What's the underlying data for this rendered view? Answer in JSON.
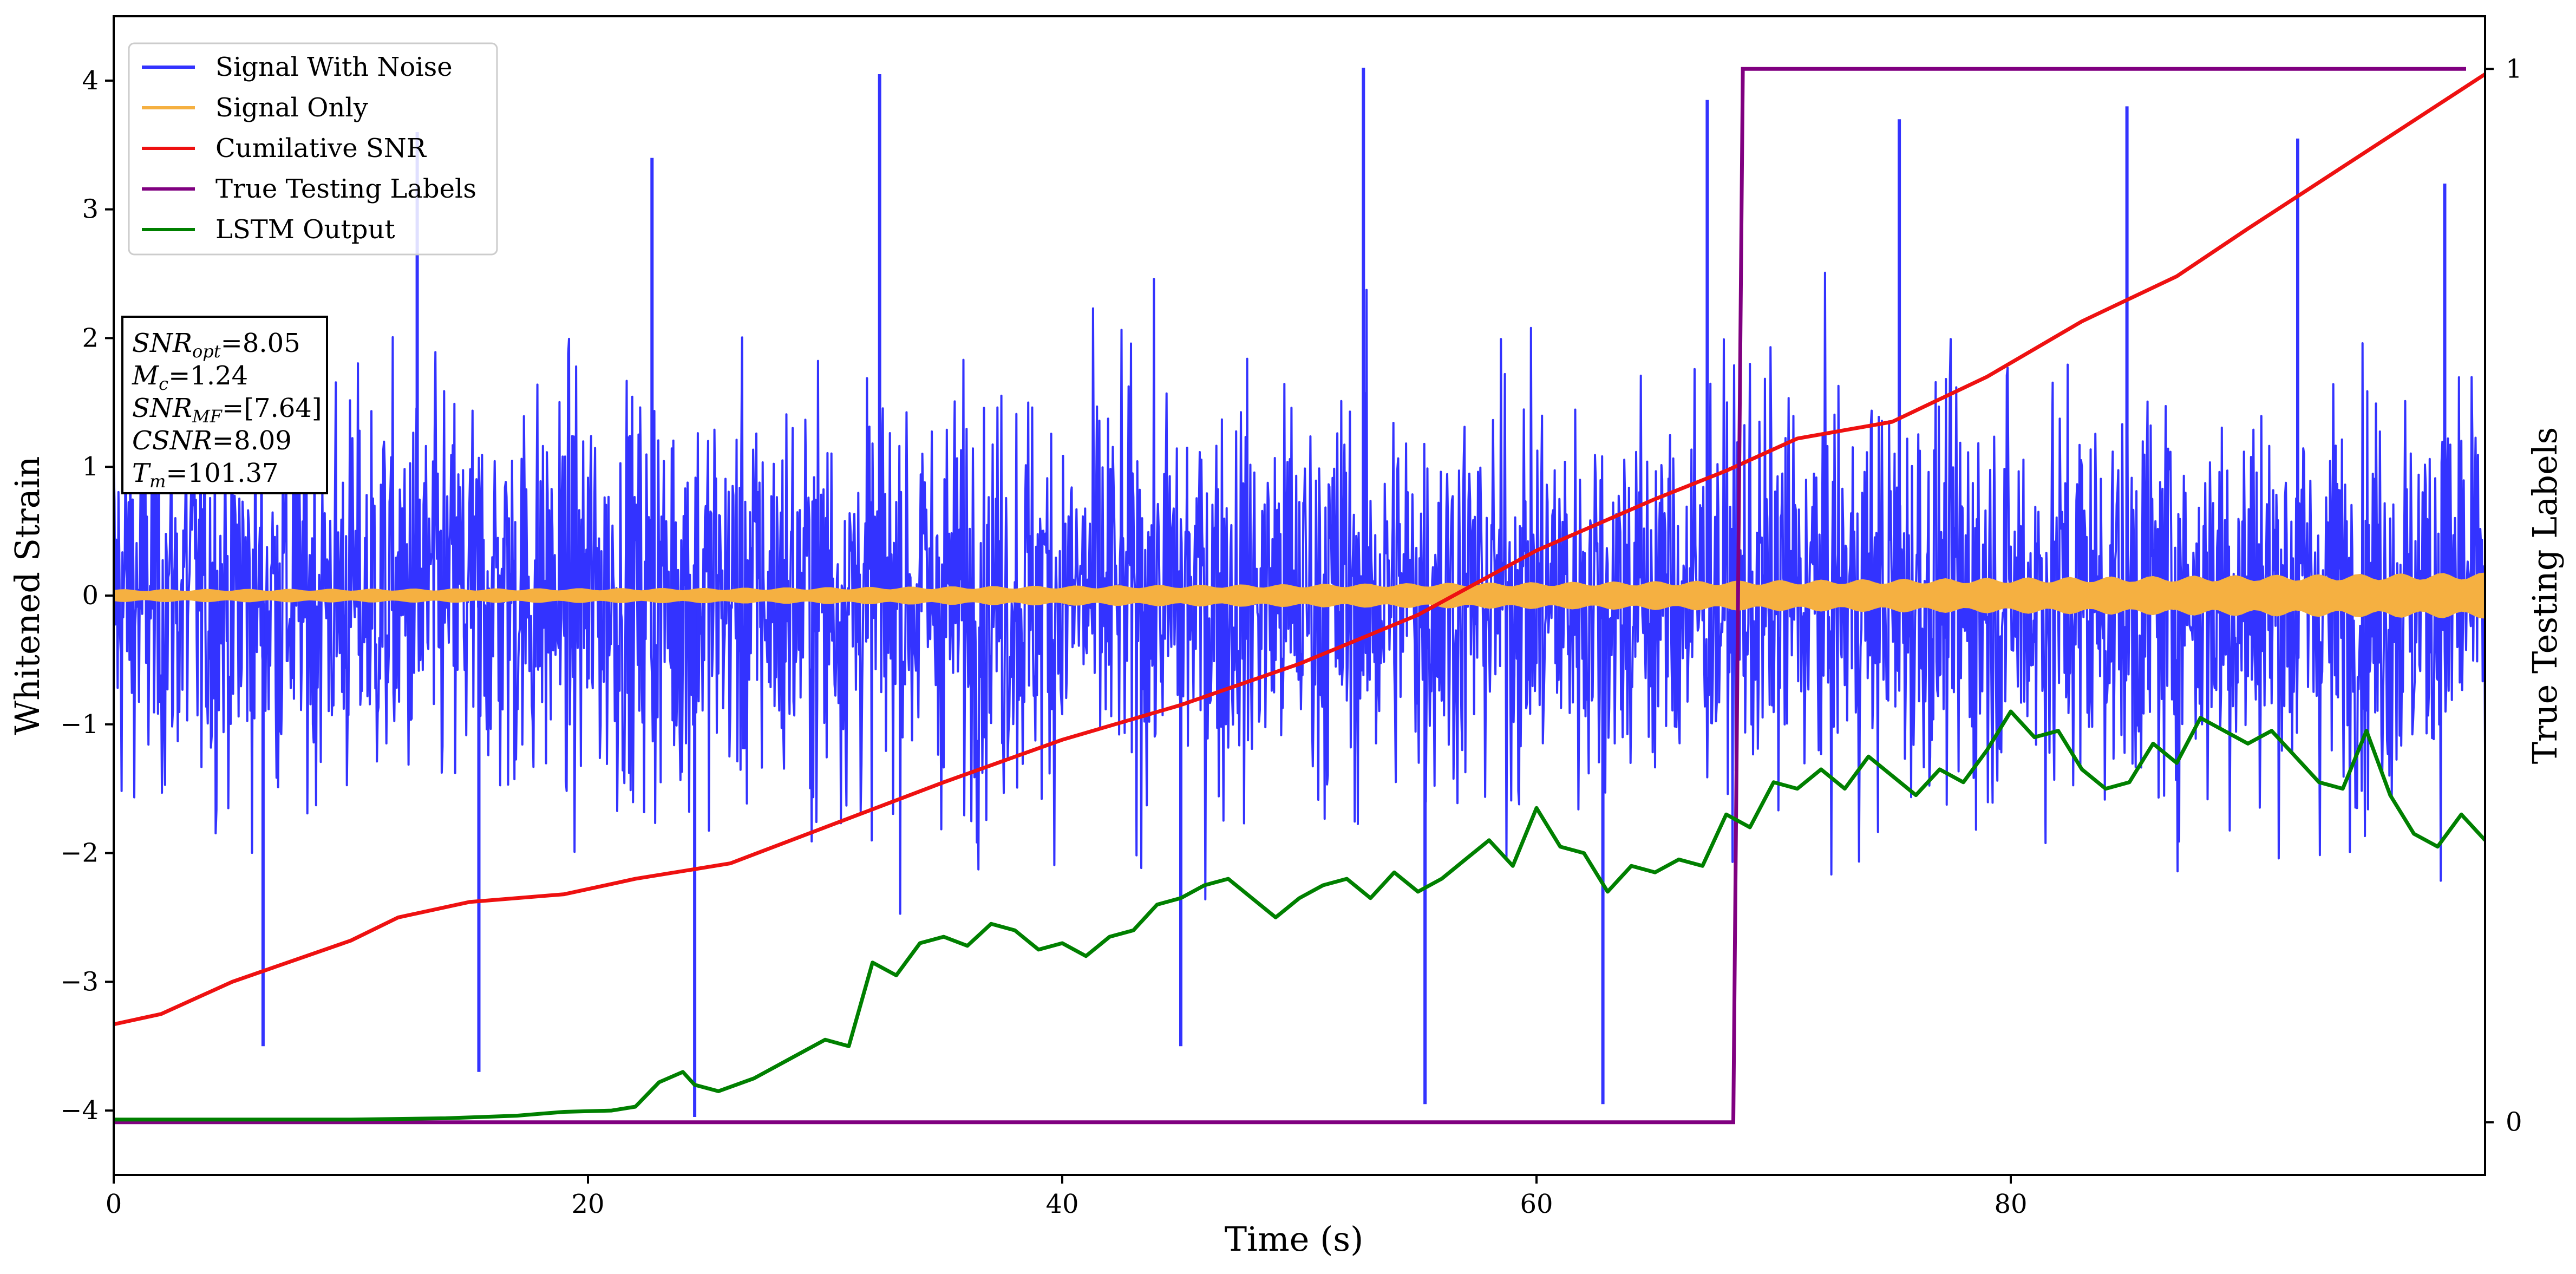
{
  "chart_data": {
    "type": "line",
    "title": "",
    "xlabel": "Time (s)",
    "ylabel": "Whitened Strain",
    "ylabel_right": "True Testing Labels",
    "xlim": [
      0,
      100
    ],
    "ylim": [
      -4.5,
      4.5
    ],
    "ylim_right": [
      -0.05,
      1.05
    ],
    "x_ticks": [
      0,
      20,
      40,
      60,
      80
    ],
    "y_ticks": [
      -4,
      -3,
      -2,
      -1,
      0,
      1,
      2,
      3,
      4
    ],
    "y_ticks_right": [
      0,
      1
    ],
    "grid": false,
    "legend_placement": "top-left",
    "series": [
      {
        "name": "Signal With Noise",
        "color": "#3333ff",
        "axis": "left",
        "style": "gaussian noise, std ~0.8, spikes up to ~4.1",
        "spikes": [
          [
            6.3,
            -3.5
          ],
          [
            12.8,
            3.6
          ],
          [
            15.4,
            -3.7
          ],
          [
            22.7,
            3.4
          ],
          [
            24.5,
            -4.05
          ],
          [
            32.3,
            4.05
          ],
          [
            45.0,
            -3.5
          ],
          [
            52.7,
            4.1
          ],
          [
            55.3,
            -3.95
          ],
          [
            62.8,
            -3.95
          ],
          [
            67.2,
            3.85
          ],
          [
            75.3,
            3.7
          ],
          [
            84.9,
            3.8
          ],
          [
            92.1,
            3.55
          ],
          [
            98.3,
            3.2
          ]
        ]
      },
      {
        "name": "Signal Only",
        "color": "#f5b041",
        "axis": "left",
        "amplitude_envelope": [
          [
            0,
            0.05
          ],
          [
            25,
            0.06
          ],
          [
            50,
            0.09
          ],
          [
            70,
            0.12
          ],
          [
            80,
            0.14
          ],
          [
            100,
            0.18
          ]
        ]
      },
      {
        "name": "Cumilative SNR",
        "color": "#ee1111",
        "axis": "left",
        "points": [
          [
            0,
            -3.33
          ],
          [
            2,
            -3.25
          ],
          [
            5,
            -3.0
          ],
          [
            10,
            -2.68
          ],
          [
            12,
            -2.5
          ],
          [
            15,
            -2.38
          ],
          [
            19,
            -2.32
          ],
          [
            22,
            -2.2
          ],
          [
            26,
            -2.08
          ],
          [
            30,
            -1.8
          ],
          [
            35,
            -1.45
          ],
          [
            40,
            -1.12
          ],
          [
            45,
            -0.85
          ],
          [
            50,
            -0.53
          ],
          [
            55,
            -0.15
          ],
          [
            60,
            0.35
          ],
          [
            65,
            0.75
          ],
          [
            68,
            0.97
          ],
          [
            71,
            1.22
          ],
          [
            75,
            1.35
          ],
          [
            79,
            1.7
          ],
          [
            83,
            2.13
          ],
          [
            87,
            2.48
          ],
          [
            90,
            2.85
          ],
          [
            95,
            3.45
          ],
          [
            100,
            4.05
          ]
        ]
      },
      {
        "name": "True Testing Labels",
        "color": "#800080",
        "axis": "right",
        "points": [
          [
            0,
            0
          ],
          [
            68.3,
            0
          ],
          [
            68.7,
            1
          ],
          [
            99.2,
            1
          ]
        ]
      },
      {
        "name": "LSTM Output",
        "color": "#008000",
        "axis": "left",
        "points": [
          [
            0,
            -4.07
          ],
          [
            10,
            -4.07
          ],
          [
            14,
            -4.06
          ],
          [
            17,
            -4.04
          ],
          [
            19,
            -4.01
          ],
          [
            21,
            -4.0
          ],
          [
            22,
            -3.97
          ],
          [
            23,
            -3.78
          ],
          [
            24,
            -3.7
          ],
          [
            24.5,
            -3.8
          ],
          [
            25.5,
            -3.85
          ],
          [
            27,
            -3.75
          ],
          [
            28.5,
            -3.6
          ],
          [
            30,
            -3.45
          ],
          [
            31,
            -3.5
          ],
          [
            32,
            -2.85
          ],
          [
            33,
            -2.95
          ],
          [
            34,
            -2.7
          ],
          [
            35,
            -2.65
          ],
          [
            36,
            -2.72
          ],
          [
            37,
            -2.55
          ],
          [
            38,
            -2.6
          ],
          [
            39,
            -2.75
          ],
          [
            40,
            -2.7
          ],
          [
            41,
            -2.8
          ],
          [
            42,
            -2.65
          ],
          [
            43,
            -2.6
          ],
          [
            44,
            -2.4
          ],
          [
            45,
            -2.35
          ],
          [
            46,
            -2.25
          ],
          [
            47,
            -2.2
          ],
          [
            48,
            -2.35
          ],
          [
            49,
            -2.5
          ],
          [
            50,
            -2.35
          ],
          [
            51,
            -2.25
          ],
          [
            52,
            -2.2
          ],
          [
            53,
            -2.35
          ],
          [
            54,
            -2.15
          ],
          [
            55,
            -2.3
          ],
          [
            56,
            -2.2
          ],
          [
            57,
            -2.05
          ],
          [
            58,
            -1.9
          ],
          [
            59,
            -2.1
          ],
          [
            60,
            -1.65
          ],
          [
            61,
            -1.95
          ],
          [
            62,
            -2.0
          ],
          [
            63,
            -2.3
          ],
          [
            64,
            -2.1
          ],
          [
            65,
            -2.15
          ],
          [
            66,
            -2.05
          ],
          [
            67,
            -2.1
          ],
          [
            68,
            -1.7
          ],
          [
            69,
            -1.8
          ],
          [
            70,
            -1.45
          ],
          [
            71,
            -1.5
          ],
          [
            72,
            -1.35
          ],
          [
            73,
            -1.5
          ],
          [
            74,
            -1.25
          ],
          [
            75,
            -1.4
          ],
          [
            76,
            -1.55
          ],
          [
            77,
            -1.35
          ],
          [
            78,
            -1.45
          ],
          [
            79,
            -1.2
          ],
          [
            80,
            -0.9
          ],
          [
            81,
            -1.1
          ],
          [
            82,
            -1.05
          ],
          [
            83,
            -1.35
          ],
          [
            84,
            -1.5
          ],
          [
            85,
            -1.45
          ],
          [
            86,
            -1.15
          ],
          [
            87,
            -1.3
          ],
          [
            88,
            -0.95
          ],
          [
            89,
            -1.05
          ],
          [
            90,
            -1.15
          ],
          [
            91,
            -1.05
          ],
          [
            92,
            -1.25
          ],
          [
            93,
            -1.45
          ],
          [
            94,
            -1.5
          ],
          [
            95,
            -1.05
          ],
          [
            96,
            -1.55
          ],
          [
            97,
            -1.85
          ],
          [
            98,
            -1.95
          ],
          [
            99,
            -1.7
          ],
          [
            100,
            -1.9
          ]
        ]
      }
    ],
    "annotation": {
      "lines": [
        {
          "var": "SNR",
          "sub": "opt",
          "value": "=8.05"
        },
        {
          "var": "M",
          "sub": "c",
          "value": "=1.24"
        },
        {
          "var": "SNR",
          "sub": "MF",
          "value": "=[7.64]"
        },
        {
          "var": "CSNR",
          "sub": "",
          "value": "=8.09"
        },
        {
          "var": "T",
          "sub": "m",
          "value": "=101.37"
        }
      ]
    }
  }
}
